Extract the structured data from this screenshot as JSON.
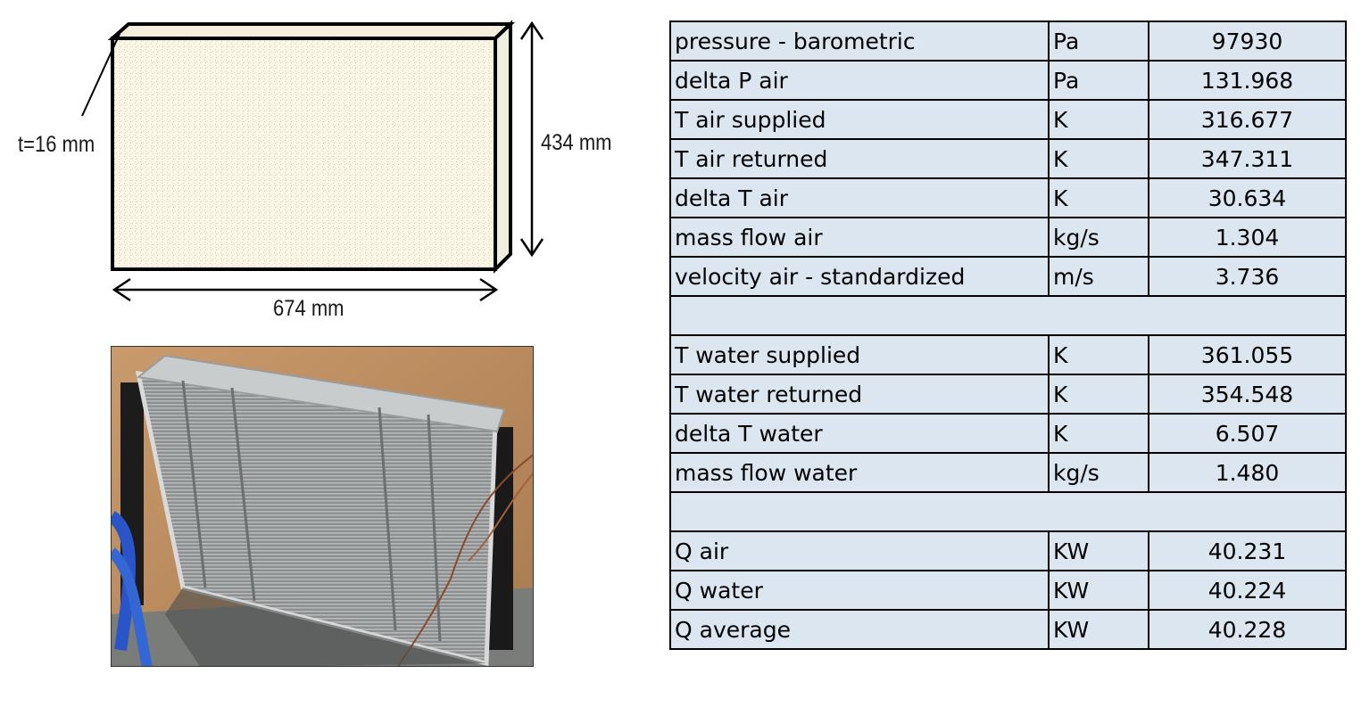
{
  "drawing": {
    "thickness_label": "t=16 mm",
    "height_label": "434 mm",
    "width_label": "674 mm"
  },
  "photo": {
    "subject": "radiator-core-photo"
  },
  "table": {
    "groups": [
      {
        "rows": [
          {
            "label": "pressure - barometric",
            "unit": "Pa",
            "value": "97930"
          },
          {
            "label": "delta P air",
            "unit": "Pa",
            "value": "131.968"
          },
          {
            "label": "T air supplied",
            "unit": "K",
            "value": "316.677"
          },
          {
            "label": "T air returned",
            "unit": "K",
            "value": "347.311"
          },
          {
            "label": "delta T air",
            "unit": "K",
            "value": "30.634"
          },
          {
            "label": "mass flow air",
            "unit": "kg/s",
            "value": "1.304"
          },
          {
            "label": "velocity air - standardized",
            "unit": "m/s",
            "value": "3.736"
          }
        ]
      },
      {
        "rows": [
          {
            "label": "T water supplied",
            "unit": "K",
            "value": "361.055"
          },
          {
            "label": "T water returned",
            "unit": "K",
            "value": "354.548"
          },
          {
            "label": "delta T water",
            "unit": "K",
            "value": "6.507"
          },
          {
            "label": "mass flow water",
            "unit": "kg/s",
            "value": "1.480"
          }
        ]
      },
      {
        "rows": [
          {
            "label": "Q air",
            "unit": "KW",
            "value": "40.231"
          },
          {
            "label": "Q water",
            "unit": "KW",
            "value": "40.224"
          },
          {
            "label": "Q average",
            "unit": "KW",
            "value": "40.228"
          }
        ]
      }
    ],
    "colors": {
      "cell_background": "#dce6f1",
      "border": "#000000"
    }
  }
}
